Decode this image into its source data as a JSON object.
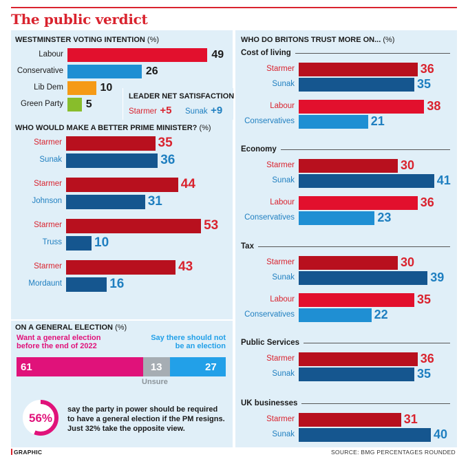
{
  "title": "The public verdict",
  "colors": {
    "labour": "#e2102d",
    "conservative": "#1f8fd3",
    "libdem": "#f59a16",
    "green": "#88bd2b",
    "starmer": "#b8101e",
    "tory_leader": "#15568f",
    "magenta": "#e0127a",
    "grey": "#a6adb3",
    "lightblue": "#22a0e8",
    "panel": "#e0eff8"
  },
  "voting": {
    "header": "WESTMINSTER VOTING INTENTION",
    "unit": "(%)",
    "parties": [
      {
        "name": "Labour",
        "value": 49
      },
      {
        "name": "Conservative",
        "value": 26
      },
      {
        "name": "Lib Dem",
        "value": 10
      },
      {
        "name": "Green Party",
        "value": 5
      }
    ]
  },
  "satisfaction": {
    "header": "LEADER NET SATISFACTION",
    "items": [
      {
        "name": "Starmer",
        "value": "+5"
      },
      {
        "name": "Sunak",
        "value": "+9"
      }
    ]
  },
  "better_pm": {
    "header": "WHO WOULD MAKE A BETTER PRIME MINISTER?",
    "unit": "(%)",
    "pairs": [
      [
        {
          "name": "Starmer",
          "value": 35
        },
        {
          "name": "Sunak",
          "value": 36
        }
      ],
      [
        {
          "name": "Starmer",
          "value": 44
        },
        {
          "name": "Johnson",
          "value": 31
        }
      ],
      [
        {
          "name": "Starmer",
          "value": 53
        },
        {
          "name": "Truss",
          "value": 10
        }
      ],
      [
        {
          "name": "Starmer",
          "value": 43
        },
        {
          "name": "Mordaunt",
          "value": 16
        }
      ]
    ]
  },
  "election": {
    "header": "ON A GENERAL ELECTION",
    "unit": "(%)",
    "want_label": "Want a general election before the end of 2022",
    "dont_label": "Say there should not be an election",
    "unsure_label": "Unsure",
    "want": 61,
    "unsure": 13,
    "dont": 27
  },
  "stat": {
    "percent_label": "56%",
    "percent": 56,
    "text_a": "say the party in power should be required to have a general election if the PM resigns. Just ",
    "text_b": "32%",
    "text_c": " take the opposite view."
  },
  "trust": {
    "header": "WHO DO BRITONS TRUST MORE ON...",
    "unit": "(%)",
    "sections": [
      {
        "title": "Cost of living",
        "rows": [
          {
            "name": "Starmer",
            "value": 36
          },
          {
            "name": "Sunak",
            "value": 35
          },
          {
            "name": "Labour",
            "value": 38
          },
          {
            "name": "Conservatives",
            "value": 21
          }
        ]
      },
      {
        "title": "Economy",
        "rows": [
          {
            "name": "Starmer",
            "value": 30
          },
          {
            "name": "Sunak",
            "value": 41
          },
          {
            "name": "Labour",
            "value": 36
          },
          {
            "name": "Conservatives",
            "value": 23
          }
        ]
      },
      {
        "title": "Tax",
        "rows": [
          {
            "name": "Starmer",
            "value": 30
          },
          {
            "name": "Sunak",
            "value": 39
          },
          {
            "name": "Labour",
            "value": 35
          },
          {
            "name": "Conservatives",
            "value": 22
          }
        ]
      },
      {
        "title": "Public Services",
        "rows": [
          {
            "name": "Starmer",
            "value": 36
          },
          {
            "name": "Sunak",
            "value": 35
          }
        ]
      },
      {
        "title": "UK businesses",
        "rows": [
          {
            "name": "Starmer",
            "value": 31
          },
          {
            "name": "Sunak",
            "value": 40
          }
        ]
      }
    ]
  },
  "footer": {
    "brand": "GRAPHIC",
    "source": "SOURCE: BMG   PERCENTAGES ROUNDED"
  },
  "chart_data": [
    {
      "type": "bar",
      "title": "WESTMINSTER VOTING INTENTION (%)",
      "categories": [
        "Labour",
        "Conservative",
        "Lib Dem",
        "Green Party"
      ],
      "values": [
        49,
        26,
        10,
        5
      ]
    },
    {
      "type": "bar",
      "title": "WHO WOULD MAKE A BETTER PRIME MINISTER? (%)",
      "categories": [
        "Starmer v Sunak",
        "Starmer v Johnson",
        "Starmer v Truss",
        "Starmer v Mordaunt"
      ],
      "series": [
        {
          "name": "Starmer",
          "values": [
            35,
            44,
            53,
            43
          ]
        },
        {
          "values": [
            36,
            31,
            10,
            16
          ]
        }
      ]
    },
    {
      "type": "bar",
      "title": "ON A GENERAL ELECTION (%)",
      "categories": [
        "Want a general election before the end of 2022",
        "Unsure",
        "Say there should not be an election"
      ],
      "values": [
        61,
        13,
        27
      ]
    },
    {
      "type": "bar",
      "title": "WHO DO BRITONS TRUST MORE ON... (%)",
      "categories": [
        "Cost of living",
        "Economy",
        "Tax",
        "Public Services",
        "UK businesses"
      ],
      "series": [
        {
          "name": "Starmer",
          "values": [
            36,
            30,
            30,
            36,
            31
          ]
        },
        {
          "name": "Sunak",
          "values": [
            35,
            41,
            39,
            35,
            40
          ]
        },
        {
          "name": "Labour",
          "values": [
            38,
            36,
            35,
            null,
            null
          ]
        },
        {
          "name": "Conservatives",
          "values": [
            21,
            23,
            22,
            null,
            null
          ]
        }
      ]
    }
  ]
}
